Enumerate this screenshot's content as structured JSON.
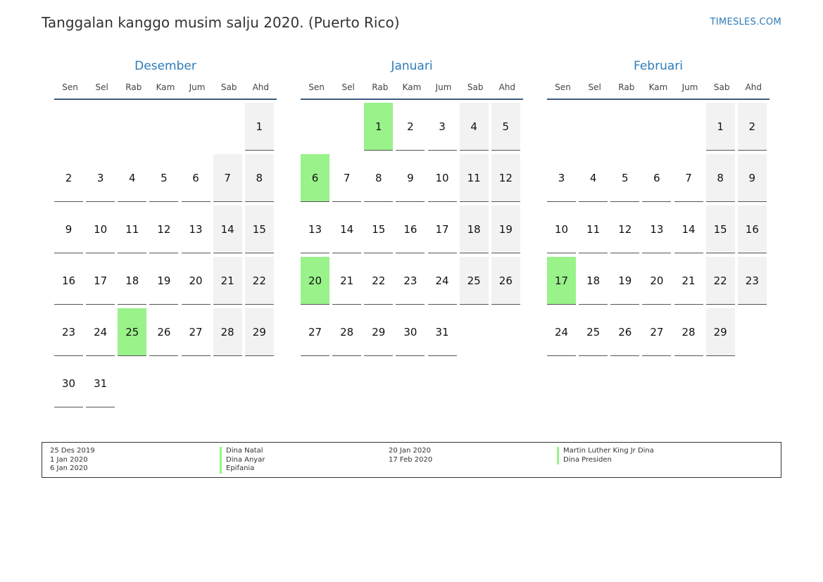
{
  "header": {
    "title": "Tanggalan kanggo musim salju 2020. (Puerto Rico)",
    "site": "TIMESLES.COM"
  },
  "weekdays": [
    "Sen",
    "Sel",
    "Rab",
    "Kam",
    "Jum",
    "Sab",
    "Ahd"
  ],
  "colors": {
    "accent": "#2e7bb8",
    "holiday": "#99f28a",
    "weekend": "#f2f2f2"
  },
  "months": [
    {
      "name": "Desember",
      "start_weekday": 7,
      "days": 31,
      "holidays": [
        25
      ]
    },
    {
      "name": "Januari",
      "start_weekday": 3,
      "days": 31,
      "holidays": [
        1,
        6,
        20
      ]
    },
    {
      "name": "Februari",
      "start_weekday": 6,
      "days": 29,
      "holidays": [
        17
      ]
    }
  ],
  "legend": {
    "col1_dates": [
      "25 Des 2019",
      "1 Jan 2020",
      "6 Jan 2020"
    ],
    "col1_names": [
      "Dina Natal",
      "Dina Anyar",
      "Epifania"
    ],
    "col2_dates": [
      "20 Jan 2020",
      "17 Feb 2020"
    ],
    "col2_names": [
      "Martin Luther King Jr Dina",
      "Dina Presiden"
    ]
  }
}
